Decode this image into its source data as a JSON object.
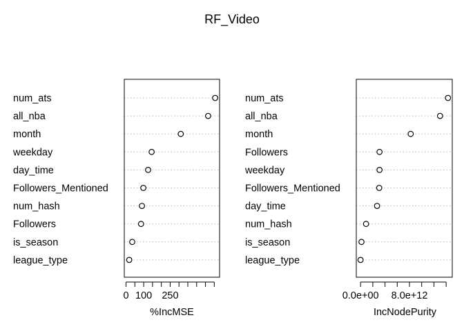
{
  "chart_data": [
    {
      "type": "scatter",
      "title": "RF_Video",
      "xlabel": "%IncMSE",
      "x_tick_labels": [
        "0",
        "100",
        "250"
      ],
      "xlim": [
        -10,
        530
      ],
      "grid": true,
      "categories": [
        "num_ats",
        "all_nba",
        "month",
        "weekday",
        "day_time",
        "Followers_Mentioned",
        "num_hash",
        "Followers",
        "is_season",
        "league_type"
      ],
      "values": [
        505,
        465,
        310,
        145,
        125,
        98,
        90,
        85,
        35,
        18
      ]
    },
    {
      "type": "scatter",
      "xlabel": "IncNodePurity",
      "x_tick_labels": [
        "0.0e+00",
        "8.0e+12"
      ],
      "xlim": [
        -700000000000.0,
        15000000000000.0
      ],
      "grid": true,
      "categories": [
        "num_ats",
        "all_nba",
        "month",
        "Followers",
        "weekday",
        "Followers_Mentioned",
        "day_time",
        "num_hash",
        "is_season",
        "league_type"
      ],
      "values": [
        14300000000000.0,
        13000000000000.0,
        8200000000000.0,
        3100000000000.0,
        3100000000000.0,
        3050000000000.0,
        2700000000000.0,
        900000000000.0,
        150000000000.0,
        0
      ]
    }
  ]
}
